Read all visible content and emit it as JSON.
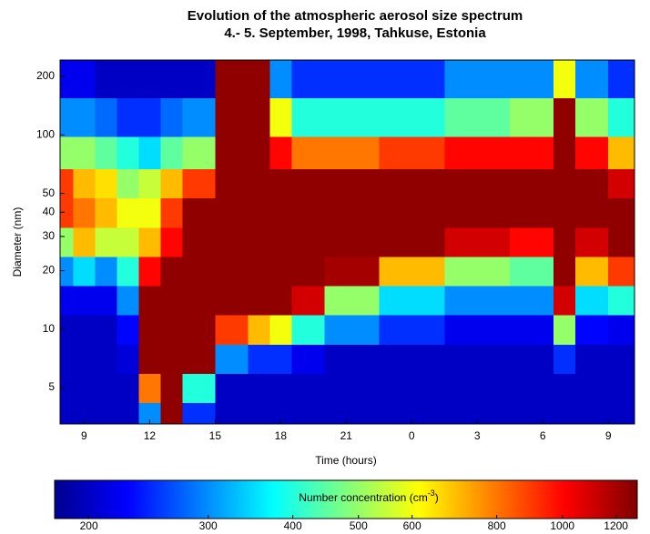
{
  "chart_data": {
    "type": "heatmap",
    "title": "Evolution of the atmospheric aerosol size spectrum",
    "subtitle": "4.- 5. September, 1998, Tahkuse, Estonia",
    "x_label": "Time (hours)",
    "y_label": "Diameter (nm)",
    "colorbar_label": "Number concentration (cm",
    "colorbar_label_sup": "-3",
    "colorbar_label_end": ")",
    "xlim": [
      7.9,
      34.2
    ],
    "xticks": [
      9,
      12,
      15,
      18,
      21,
      {
        "value": 24,
        "label": "0"
      },
      {
        "value": 27,
        "label": "3"
      },
      {
        "value": 30,
        "label": "6"
      },
      {
        "value": 33,
        "label": "9"
      }
    ],
    "ylim": [
      3.25,
      243
    ],
    "yticks": [
      5,
      10,
      20,
      30,
      40,
      50,
      100,
      200
    ],
    "y_scale": "log",
    "clim": [
      178,
      1290
    ],
    "cticks": [
      200,
      300,
      400,
      500,
      600,
      800,
      1000,
      1200
    ],
    "c_scale": "log",
    "x": [
      8,
      9,
      10,
      11,
      12,
      13,
      14,
      16,
      17,
      18,
      19,
      21,
      24,
      27,
      30,
      31,
      32,
      34
    ],
    "y": [
      3.5,
      5,
      7,
      10,
      14,
      20,
      28,
      40,
      56,
      80,
      120,
      200
    ],
    "z": [
      [
        200,
        200,
        200,
        200,
        220,
        300,
        500,
        900,
        900,
        500,
        300,
        220
      ],
      [
        200,
        200,
        200,
        200,
        220,
        350,
        700,
        800,
        700,
        500,
        300,
        220
      ],
      [
        200,
        200,
        200,
        200,
        220,
        300,
        550,
        700,
        650,
        450,
        280,
        200
      ],
      [
        200,
        200,
        210,
        230,
        300,
        400,
        550,
        600,
        500,
        400,
        250,
        200
      ],
      [
        300,
        800,
        1250,
        1250,
        1250,
        1000,
        700,
        600,
        550,
        350,
        250,
        200
      ],
      [
        1250,
        1250,
        1250,
        1250,
        1250,
        1250,
        1000,
        900,
        700,
        450,
        280,
        200
      ],
      [
        250,
        400,
        1250,
        1250,
        1250,
        1250,
        1250,
        1250,
        900,
        500,
        300,
        200
      ],
      [
        200,
        200,
        300,
        900,
        1250,
        1250,
        1250,
        1250,
        1250,
        1250,
        1250,
        1250
      ],
      [
        200,
        200,
        250,
        700,
        1250,
        1250,
        1250,
        1250,
        1250,
        1250,
        1250,
        1250
      ],
      [
        200,
        200,
        250,
        600,
        1250,
        1250,
        1250,
        1250,
        1250,
        1000,
        600,
        300
      ],
      [
        200,
        200,
        220,
        400,
        1100,
        1250,
        1250,
        1250,
        1250,
        800,
        400,
        250
      ],
      [
        200,
        200,
        200,
        300,
        500,
        1200,
        1250,
        1250,
        1250,
        800,
        400,
        250
      ],
      [
        200,
        200,
        200,
        250,
        350,
        700,
        1250,
        1250,
        1250,
        900,
        400,
        250
      ],
      [
        200,
        200,
        200,
        220,
        300,
        500,
        1100,
        1250,
        1250,
        1000,
        450,
        300
      ],
      [
        200,
        200,
        200,
        220,
        300,
        450,
        1000,
        1250,
        1250,
        1000,
        500,
        300
      ],
      [
        200,
        200,
        250,
        500,
        1100,
        1250,
        1250,
        1250,
        1250,
        1250,
        1250,
        600
      ],
      [
        200,
        200,
        200,
        230,
        350,
        700,
        1100,
        1250,
        1250,
        1000,
        500,
        300
      ],
      [
        200,
        200,
        200,
        220,
        400,
        900,
        1250,
        1250,
        1100,
        700,
        400,
        250
      ]
    ]
  }
}
